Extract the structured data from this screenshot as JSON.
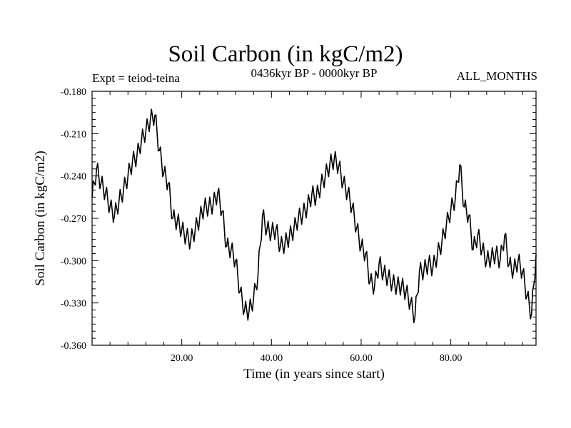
{
  "chart_data": {
    "type": "line",
    "title": "Soil Carbon (in kgC/m2)",
    "subtitle": "0436kyr BP - 0000kyr BP",
    "left_annotation": "Expt = teiod-teina",
    "right_annotation": "ALL_MONTHS",
    "xlabel": "Time (in years since start)",
    "ylabel": "Soil Carbon (in kgC/m2)",
    "xlim": [
      0,
      99
    ],
    "ylim": [
      -0.36,
      -0.18
    ],
    "x_ticks": [
      20,
      40,
      60,
      80
    ],
    "x_tick_labels": [
      "20.00",
      "40.00",
      "60.00",
      "80.00"
    ],
    "y_ticks": [
      -0.18,
      -0.21,
      -0.24,
      -0.27,
      -0.3,
      -0.33,
      -0.36
    ],
    "y_tick_labels": [
      "-0.180",
      "-0.210",
      "-0.240",
      "-0.270",
      "-0.300",
      "-0.330",
      "-0.360"
    ],
    "series": [
      {
        "name": "soil carbon",
        "x": [
          0,
          1,
          2,
          3,
          4,
          5,
          6,
          7,
          8,
          9,
          10,
          11,
          12,
          13,
          14,
          15,
          16,
          17,
          18,
          19,
          20,
          21,
          22,
          23,
          24,
          25,
          26,
          27,
          28,
          29,
          30,
          31,
          32,
          33,
          34,
          35,
          36,
          37,
          38,
          39,
          40,
          41,
          42,
          43,
          44,
          45,
          46,
          47,
          48,
          49,
          50,
          51,
          52,
          53,
          54,
          55,
          56,
          57,
          58,
          59,
          60,
          61,
          62,
          63,
          64,
          65,
          66,
          67,
          68,
          69,
          70,
          71,
          72,
          73,
          74,
          75,
          76,
          77,
          78,
          79,
          80,
          81,
          82,
          83,
          84,
          85,
          86,
          87,
          88,
          89,
          90,
          91,
          92,
          93,
          94,
          95,
          96,
          97,
          98,
          99
        ],
        "values": [
          -0.255,
          -0.235,
          -0.245,
          -0.252,
          -0.262,
          -0.268,
          -0.258,
          -0.25,
          -0.24,
          -0.23,
          -0.226,
          -0.215,
          -0.208,
          -0.2,
          -0.197,
          -0.222,
          -0.238,
          -0.245,
          -0.27,
          -0.272,
          -0.278,
          -0.283,
          -0.286,
          -0.278,
          -0.27,
          -0.262,
          -0.262,
          -0.26,
          -0.252,
          -0.265,
          -0.29,
          -0.292,
          -0.3,
          -0.322,
          -0.335,
          -0.336,
          -0.327,
          -0.31,
          -0.268,
          -0.278,
          -0.28,
          -0.278,
          -0.29,
          -0.288,
          -0.283,
          -0.278,
          -0.27,
          -0.267,
          -0.262,
          -0.253,
          -0.255,
          -0.247,
          -0.24,
          -0.232,
          -0.228,
          -0.233,
          -0.245,
          -0.252,
          -0.262,
          -0.277,
          -0.29,
          -0.295,
          -0.315,
          -0.318,
          -0.302,
          -0.309,
          -0.312,
          -0.316,
          -0.318,
          -0.318,
          -0.322,
          -0.33,
          -0.34,
          -0.308,
          -0.307,
          -0.302,
          -0.305,
          -0.296,
          -0.287,
          -0.275,
          -0.264,
          -0.256,
          -0.232,
          -0.262,
          -0.268,
          -0.292,
          -0.282,
          -0.292,
          -0.3,
          -0.298,
          -0.295,
          -0.3,
          -0.282,
          -0.303,
          -0.307,
          -0.3,
          -0.308,
          -0.325,
          -0.338,
          -0.296
        ]
      }
    ]
  }
}
